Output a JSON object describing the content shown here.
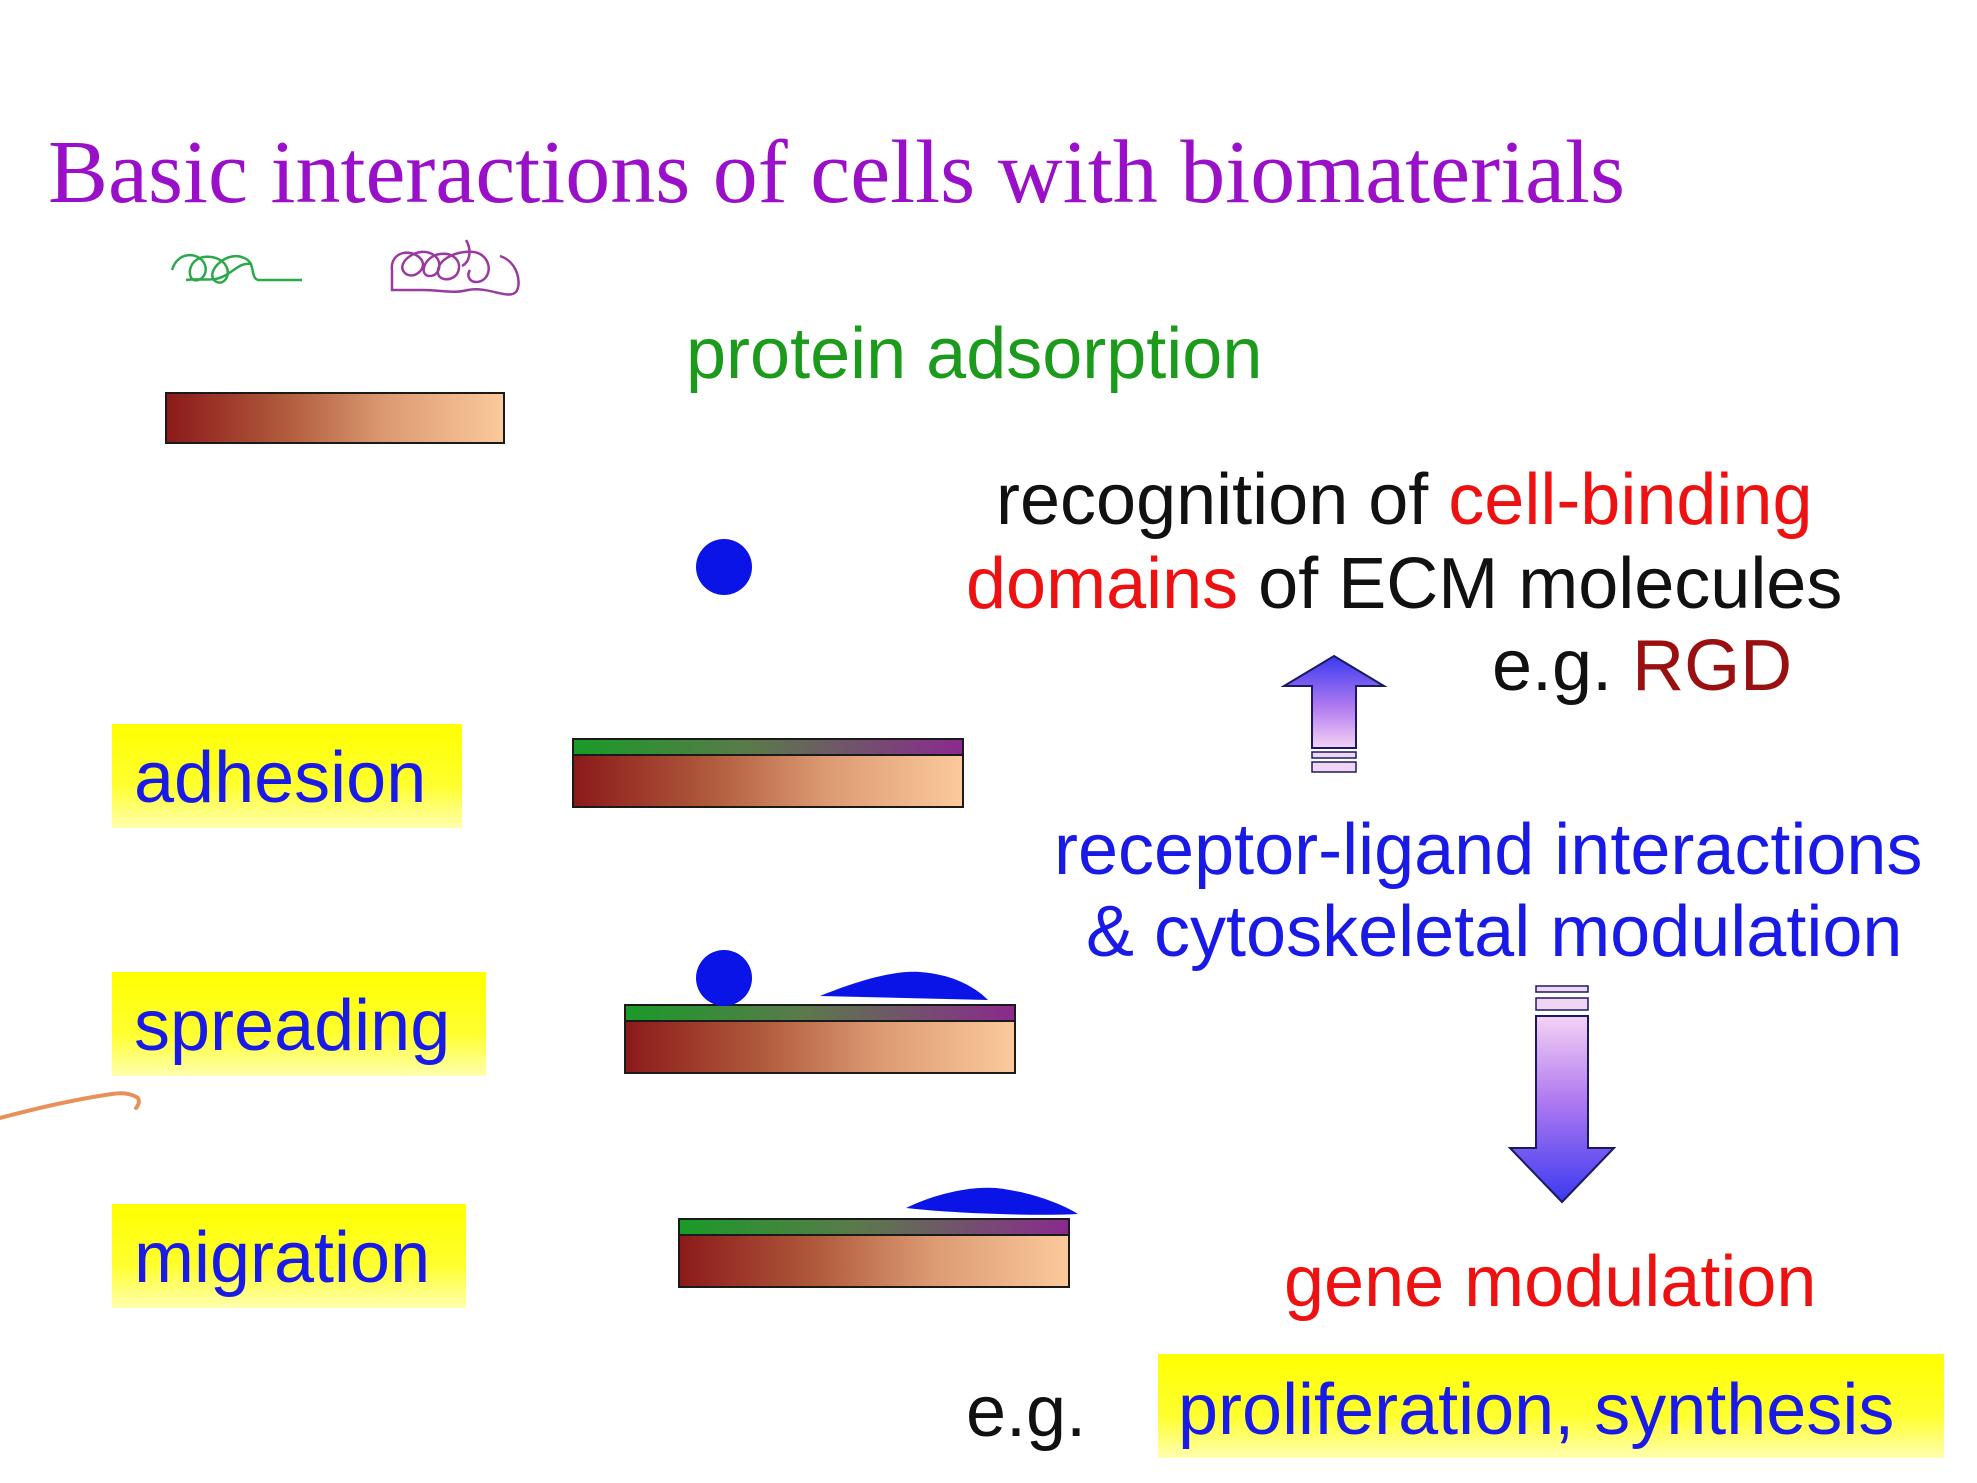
{
  "title": "Basic interactions of cells with biomaterials",
  "steps": {
    "protein_adsorption": "protein adsorption",
    "adhesion": "adhesion",
    "spreading": "spreading",
    "migration": "migration"
  },
  "recognition": {
    "line1_a": "recognition of ",
    "line1_b": "cell-binding",
    "line2_a": "domains",
    "line2_b": " of ECM molecules",
    "eg": "e.g. ",
    "example": "RGD"
  },
  "receptor": {
    "line1": "receptor-ligand interactions",
    "line2": "& cytoskeletal modulation"
  },
  "gene": {
    "label": "gene modulation",
    "eg": "e.g.",
    "outcome": "proliferation, synthesis"
  },
  "colors": {
    "title": "#9a10c8",
    "protein_text": "#1b9a1b",
    "red": "#ee1111",
    "dark_red": "#9a1010",
    "blue": "#1a1ae6",
    "highlight": "#ffff00",
    "cell": "#0a14e6",
    "annotation": "#e8905a"
  }
}
